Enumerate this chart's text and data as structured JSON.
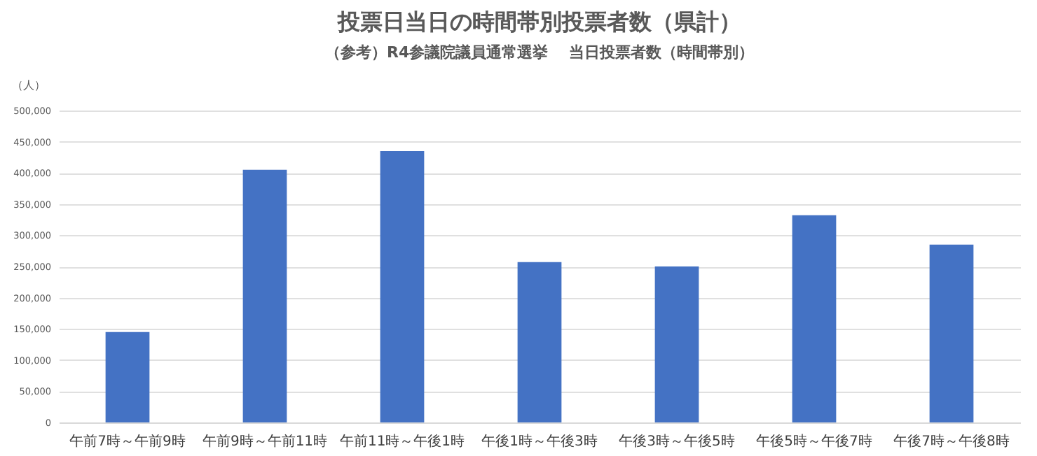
{
  "chart_data": {
    "type": "bar",
    "title": "投票日当日の時間帯別投票者数（県計）",
    "subtitle": "（参考）R4参議院議員通常選挙　 当日投票者数（時間帯別）",
    "ylabel": "（人）",
    "categories": [
      "午前7時～午前9時",
      "午前9時～午前11時",
      "午前11時～午後1時",
      "午後1時～午後3時",
      "午後3時～午後5時",
      "午後5時～午後7時",
      "午後7時～午後8時"
    ],
    "values": [
      145000,
      405000,
      435000,
      257000,
      250000,
      332000,
      285000
    ],
    "color": "#4472c4",
    "ylim": [
      0,
      500000
    ],
    "yticks": [
      {
        "value": 0,
        "label": "0"
      },
      {
        "value": 50000,
        "label": "50,000"
      },
      {
        "value": 100000,
        "label": "100,000"
      },
      {
        "value": 150000,
        "label": "150,000"
      },
      {
        "value": 200000,
        "label": "200,000"
      },
      {
        "value": 250000,
        "label": "250,000"
      },
      {
        "value": 300000,
        "label": "300,000"
      },
      {
        "value": 350000,
        "label": "350,000"
      },
      {
        "value": 400000,
        "label": "400,000"
      },
      {
        "value": 450000,
        "label": "450,000"
      },
      {
        "value": 500000,
        "label": "500,000"
      }
    ],
    "grid": "y"
  }
}
